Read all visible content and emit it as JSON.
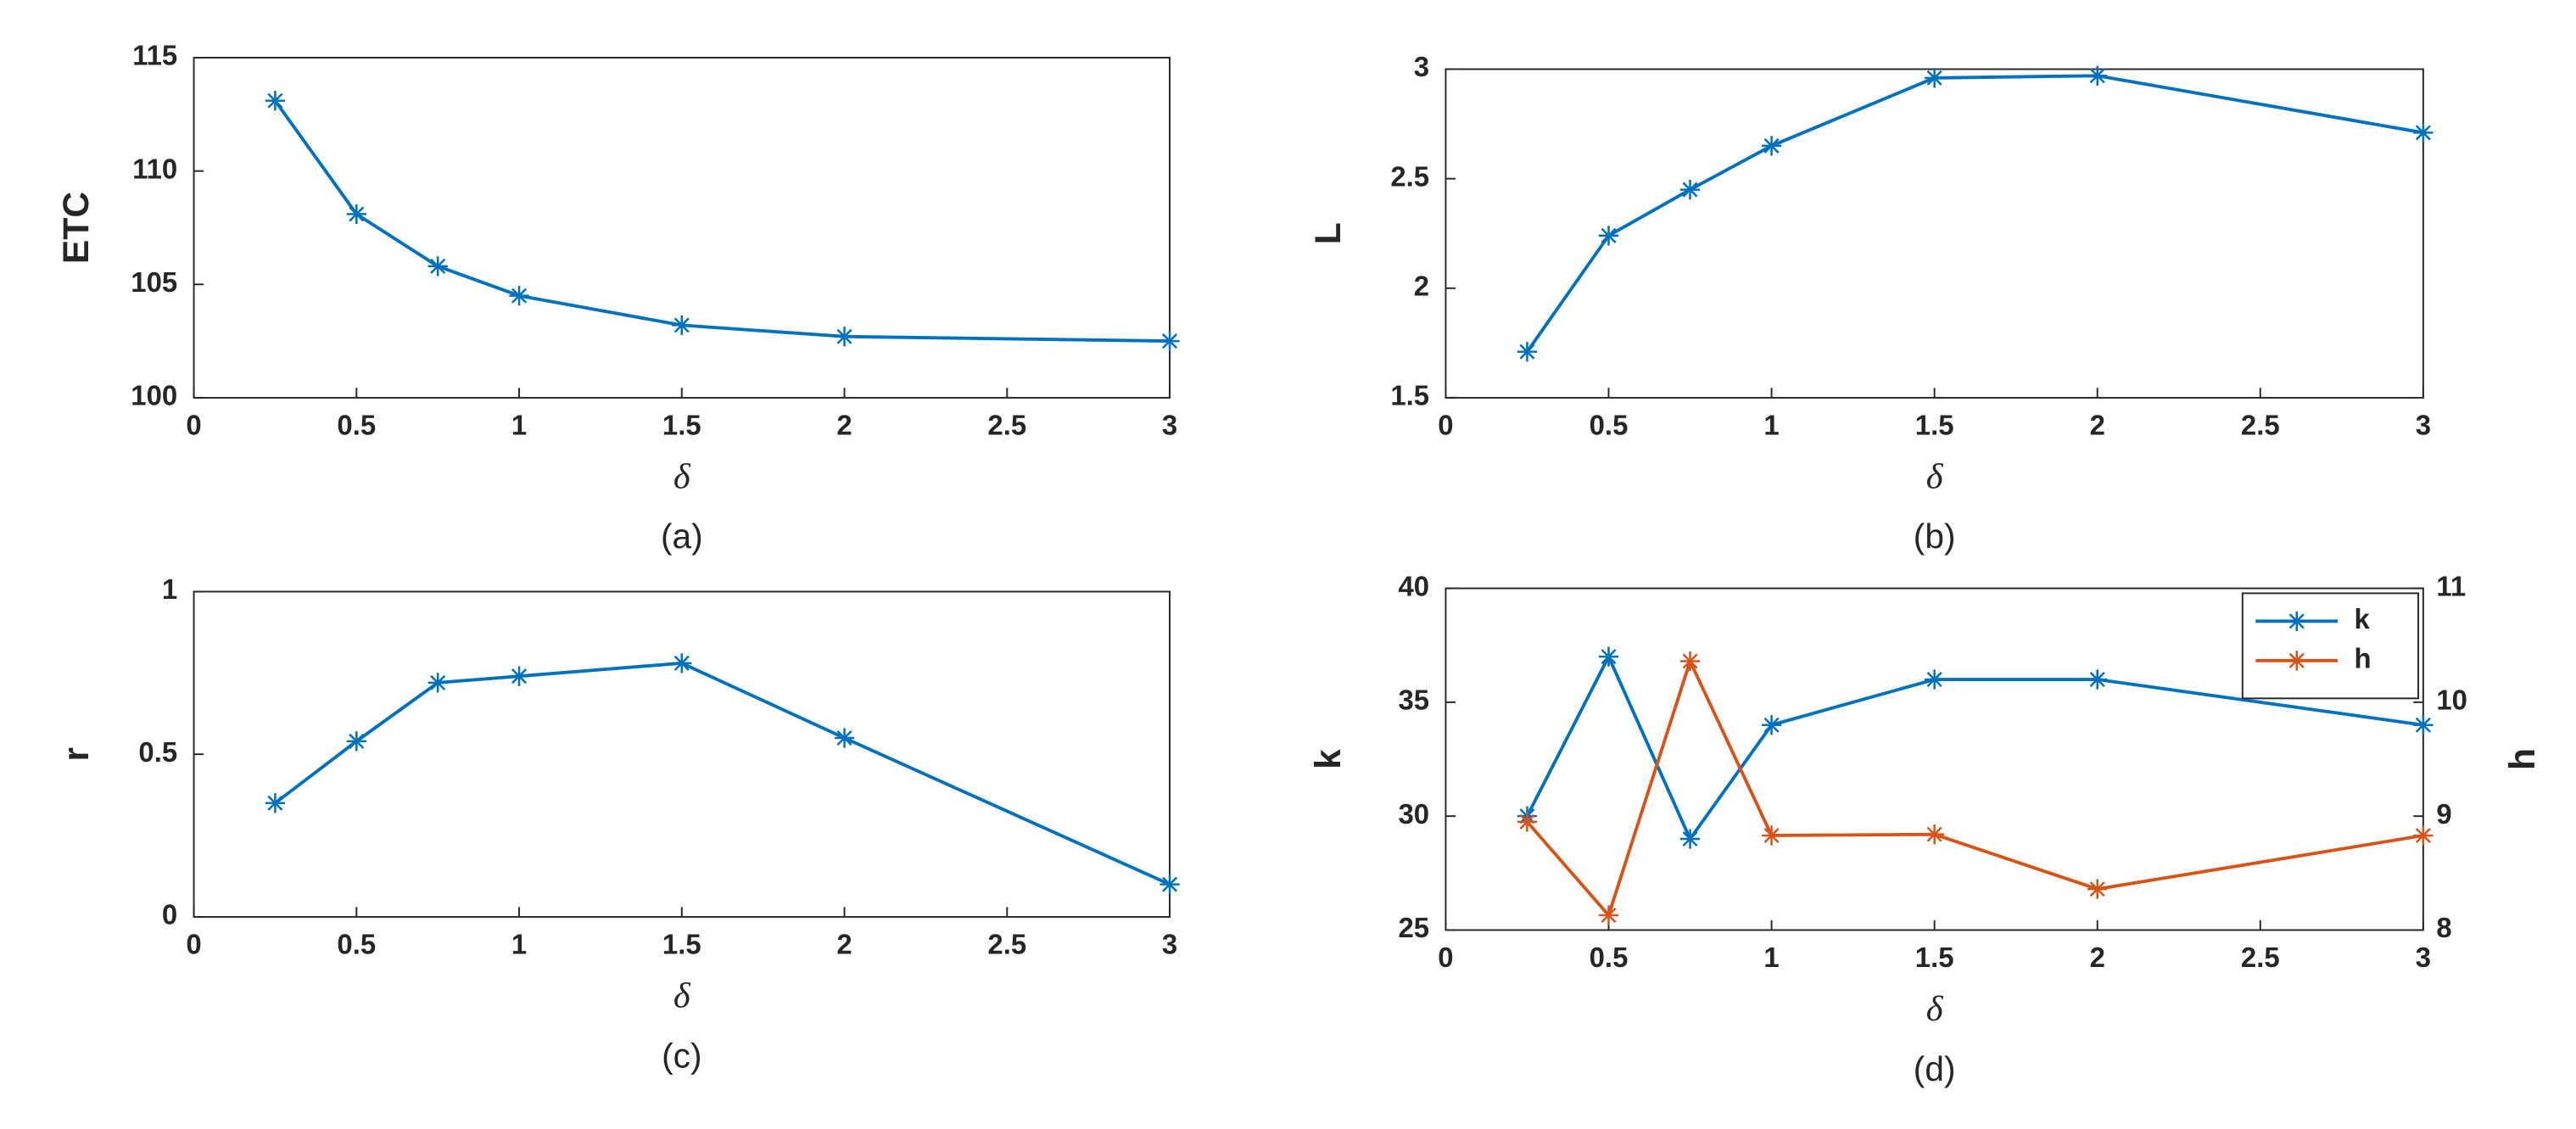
{
  "chart_data": [
    {
      "type": "line",
      "ylabel": "ETC",
      "xlabel": "δ",
      "caption": "(a)",
      "x": [
        0.25,
        0.5,
        0.75,
        1,
        1.5,
        2,
        3
      ],
      "xlim": [
        0,
        3
      ],
      "xticks": [
        0,
        0.5,
        1,
        1.5,
        2,
        2.5,
        3
      ],
      "ylim": [
        100,
        115
      ],
      "yticks": [
        100,
        105,
        110,
        115
      ],
      "series": [
        {
          "color": "#0072bd",
          "values": [
            113.1,
            108.1,
            105.8,
            104.5,
            103.2,
            102.7,
            102.5
          ]
        }
      ]
    },
    {
      "type": "line",
      "ylabel": "L",
      "xlabel": "δ",
      "caption": "(b)",
      "x": [
        0.25,
        0.5,
        0.75,
        1,
        1.5,
        2,
        3
      ],
      "xlim": [
        0,
        3
      ],
      "xticks": [
        0,
        0.5,
        1,
        1.5,
        2,
        2.5,
        3
      ],
      "ylim": [
        1.5,
        3
      ],
      "yticks": [
        1.5,
        2,
        2.5,
        3
      ],
      "series": [
        {
          "color": "#0072bd",
          "values": [
            1.71,
            2.24,
            2.45,
            2.65,
            2.96,
            2.97,
            2.71
          ]
        }
      ]
    },
    {
      "type": "line",
      "ylabel": "r",
      "xlabel": "δ",
      "caption": "(c)",
      "x": [
        0.25,
        0.5,
        0.75,
        1,
        1.5,
        2,
        3
      ],
      "xlim": [
        0,
        3
      ],
      "xticks": [
        0,
        0.5,
        1,
        1.5,
        2,
        2.5,
        3
      ],
      "ylim": [
        0,
        1
      ],
      "yticks": [
        0,
        0.5,
        1
      ],
      "series": [
        {
          "color": "#0072bd",
          "values": [
            0.35,
            0.54,
            0.72,
            0.74,
            0.78,
            0.55,
            0.1
          ]
        }
      ]
    },
    {
      "type": "line",
      "ylabel": "k",
      "y2label": "h",
      "xlabel": "δ",
      "caption": "(d)",
      "x": [
        0.25,
        0.5,
        0.75,
        1,
        1.5,
        2,
        3
      ],
      "xlim": [
        0,
        3
      ],
      "xticks": [
        0,
        0.5,
        1,
        1.5,
        2,
        2.5,
        3
      ],
      "ylim": [
        25,
        40
      ],
      "yticks": [
        25,
        30,
        35,
        40
      ],
      "y2lim": [
        8,
        11
      ],
      "y2ticks": [
        8,
        9,
        10,
        11
      ],
      "legend": "northeast",
      "series": [
        {
          "name": "k",
          "color": "#0072bd",
          "values": [
            30,
            37,
            29,
            34,
            36,
            36,
            34
          ]
        },
        {
          "name": "h",
          "color": "#d95319",
          "axis": "y2",
          "values": [
            8.95,
            8.13,
            10.36,
            8.83,
            8.84,
            8.36,
            8.83
          ]
        }
      ]
    }
  ]
}
